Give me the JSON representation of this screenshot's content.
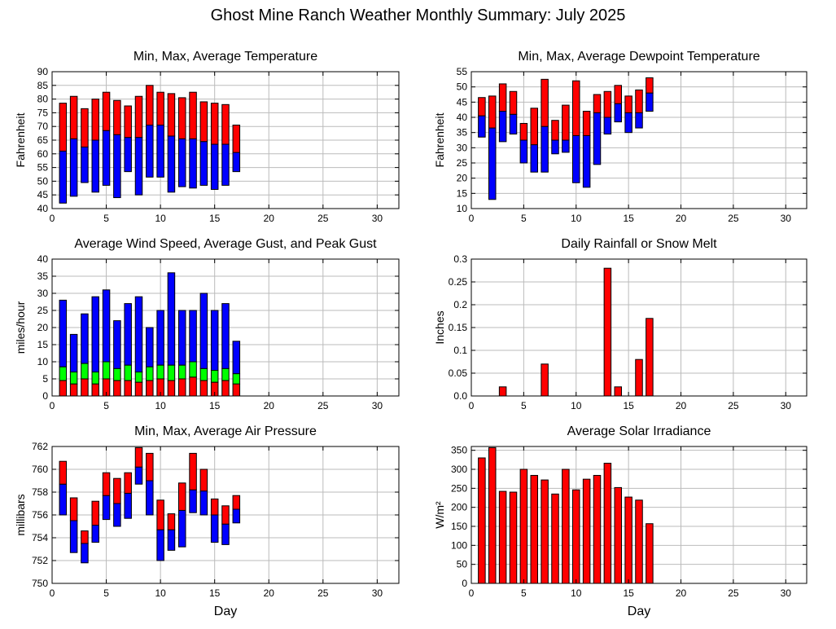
{
  "page": {
    "title": "Ghost Mine Ranch Weather Monthly Summary: July 2025"
  },
  "colors": {
    "red": "#ff0000",
    "blue": "#0000ff",
    "green": "#00ff00",
    "grid": "#bbbbbb"
  },
  "chart_data": [
    {
      "id": "temperature",
      "type": "bar",
      "title": "Min, Max, Average Temperature",
      "ylabel": "Fahrenheit",
      "xlabel": "",
      "xlim": [
        0,
        32
      ],
      "ylim": [
        40,
        90
      ],
      "xticks": [
        0,
        5,
        10,
        15,
        20,
        25,
        30
      ],
      "yticks": [
        40,
        45,
        50,
        55,
        60,
        65,
        70,
        75,
        80,
        85,
        90
      ],
      "grid": true,
      "x": [
        1,
        2,
        3,
        4,
        5,
        6,
        7,
        8,
        9,
        10,
        11,
        12,
        13,
        14,
        15,
        16,
        17
      ],
      "min": [
        42,
        44.5,
        49.5,
        46,
        48.5,
        44,
        53.5,
        45,
        51.5,
        51.5,
        46,
        48,
        47.5,
        48.5,
        47,
        48.5,
        53.5
      ],
      "avg": [
        61,
        65.5,
        62.5,
        65,
        68.5,
        67,
        66,
        66,
        70.5,
        70.5,
        66.5,
        65.5,
        65.5,
        64.5,
        63.5,
        63.5,
        60.5
      ],
      "max": [
        78.5,
        81,
        76.5,
        80,
        82.5,
        79.5,
        77.5,
        81,
        85,
        82.5,
        82,
        80.5,
        82.5,
        79,
        78.5,
        78,
        70.5
      ]
    },
    {
      "id": "dewpoint",
      "type": "bar",
      "title": "Min, Max, Average Dewpoint Temperature",
      "ylabel": "Fahrenheit",
      "xlabel": "",
      "xlim": [
        0,
        32
      ],
      "ylim": [
        10,
        55
      ],
      "xticks": [
        0,
        5,
        10,
        15,
        20,
        25,
        30
      ],
      "yticks": [
        10,
        15,
        20,
        25,
        30,
        35,
        40,
        45,
        50,
        55
      ],
      "grid": true,
      "x": [
        1,
        2,
        3,
        4,
        5,
        6,
        7,
        8,
        9,
        10,
        11,
        12,
        13,
        14,
        15,
        16,
        17
      ],
      "min": [
        33.5,
        13,
        32,
        34.5,
        25,
        22,
        22,
        28,
        28.5,
        18.5,
        17,
        24.5,
        34.5,
        38.5,
        35,
        36.5,
        42
      ],
      "avg": [
        40.5,
        36.5,
        42,
        41,
        32.5,
        31,
        37,
        32.5,
        32.5,
        34,
        34,
        41.5,
        40,
        44.5,
        41.5,
        41.5,
        48
      ],
      "max": [
        46.5,
        47,
        51,
        48.5,
        38,
        43,
        52.5,
        39,
        44,
        52,
        42,
        47.5,
        48.5,
        50.5,
        47,
        49,
        53
      ]
    },
    {
      "id": "wind",
      "type": "bar",
      "title": "Average Wind Speed, Average Gust, and Peak Gust",
      "ylabel": "miles/hour",
      "xlabel": "",
      "xlim": [
        0,
        32
      ],
      "ylim": [
        0,
        40
      ],
      "xticks": [
        0,
        5,
        10,
        15,
        20,
        25,
        30
      ],
      "yticks": [
        0,
        5,
        10,
        15,
        20,
        25,
        30,
        35,
        40
      ],
      "grid": true,
      "x": [
        1,
        2,
        3,
        4,
        5,
        6,
        7,
        8,
        9,
        10,
        11,
        12,
        13,
        14,
        15,
        16,
        17
      ],
      "avg_speed": [
        4.5,
        3.5,
        5,
        3.5,
        5,
        4.5,
        4.5,
        4,
        4.5,
        5,
        4.5,
        5,
        5.5,
        4.5,
        4,
        4.5,
        3.5
      ],
      "avg_gust": [
        8.5,
        7,
        9.5,
        7,
        10,
        8,
        9,
        7,
        8.5,
        9,
        9,
        9,
        10,
        8,
        7.5,
        8,
        6.5
      ],
      "peak_gust": [
        28,
        18,
        24,
        29,
        31,
        22,
        27,
        29,
        20,
        25,
        36,
        25,
        25,
        30,
        25,
        27,
        16
      ]
    },
    {
      "id": "rain",
      "type": "bar",
      "title": "Daily Rainfall or Snow Melt",
      "ylabel": "Inches",
      "xlabel": "",
      "xlim": [
        0,
        32
      ],
      "ylim": [
        0,
        0.3
      ],
      "xticks": [
        0,
        5,
        10,
        15,
        20,
        25,
        30
      ],
      "yticks": [
        0,
        0.05,
        0.1,
        0.15,
        0.2,
        0.25,
        0.3
      ],
      "ytick_labels": [
        "0.0",
        "0.05",
        "0.1",
        "0.15",
        "0.2",
        "0.25",
        "0.3"
      ],
      "grid": true,
      "x": [
        3,
        7,
        13,
        14,
        16,
        17
      ],
      "values": [
        0.02,
        0.07,
        0.28,
        0.02,
        0.08,
        0.17
      ]
    },
    {
      "id": "pressure",
      "type": "bar",
      "title": "Min, Max, Average Air Pressure",
      "ylabel": "millibars",
      "xlabel": "Day",
      "xlim": [
        0,
        32
      ],
      "ylim": [
        750,
        762
      ],
      "xticks": [
        0,
        5,
        10,
        15,
        20,
        25,
        30
      ],
      "yticks": [
        750,
        752,
        754,
        756,
        758,
        760,
        762
      ],
      "grid": true,
      "x": [
        1,
        2,
        3,
        4,
        5,
        6,
        7,
        8,
        9,
        10,
        11,
        12,
        13,
        14,
        15,
        16,
        17
      ],
      "min": [
        756,
        752.7,
        751.8,
        753.6,
        755.6,
        755,
        755.7,
        758.7,
        756,
        752,
        752.9,
        753.2,
        756.2,
        756,
        753.6,
        753.4,
        755.3
      ],
      "avg": [
        758.7,
        755.5,
        753.5,
        755.1,
        757.7,
        757,
        757.9,
        760.2,
        759,
        754.7,
        754.7,
        756.4,
        758.2,
        758.1,
        756,
        755.2,
        756.5
      ],
      "max": [
        760.7,
        757.5,
        754.6,
        757.2,
        759.7,
        759.2,
        759.7,
        761.9,
        761.4,
        757.3,
        756.1,
        758.8,
        761.4,
        760,
        757.4,
        756.8,
        757.7
      ]
    },
    {
      "id": "solar",
      "type": "bar",
      "title": "Average Solar Irradiance",
      "ylabel": "W/m²",
      "xlabel": "Day",
      "xlim": [
        0,
        32
      ],
      "ylim": [
        0,
        360
      ],
      "xticks": [
        0,
        5,
        10,
        15,
        20,
        25,
        30
      ],
      "yticks": [
        0,
        50,
        100,
        150,
        200,
        250,
        300,
        350
      ],
      "grid": true,
      "x": [
        1,
        2,
        3,
        4,
        5,
        6,
        7,
        8,
        9,
        10,
        11,
        12,
        13,
        14,
        15,
        16,
        17
      ],
      "values": [
        330,
        357,
        242,
        240,
        300,
        284,
        272,
        235,
        300,
        246,
        274,
        284,
        316,
        252,
        227,
        219,
        157
      ]
    }
  ]
}
